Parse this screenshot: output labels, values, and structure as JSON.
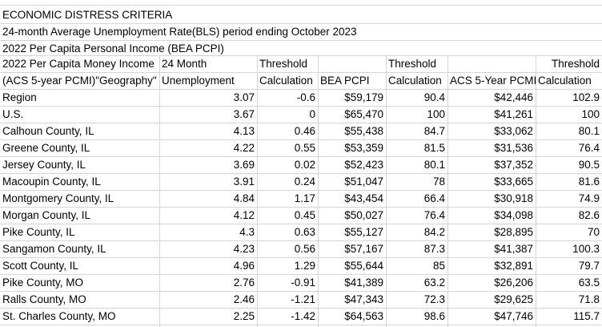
{
  "title_lines": [
    "ECONOMIC DISTRESS CRITERIA",
    "24-month Average Unemployment Rate(BLS) period ending October 2023",
    "2022 Per Capita Personal Income (BEA PCPI)"
  ],
  "header": {
    "row1": [
      "2022 Per Capita Money Income",
      "24 Month",
      "Threshold",
      "",
      "Threshold",
      "",
      "Threshold"
    ],
    "row2": [
      "(ACS 5-year PCMI)\"Geography\"",
      "Unemployment",
      "Calculation",
      "BEA PCPI",
      "Calculation",
      "ACS 5-Year PCMI",
      "Calculation"
    ]
  },
  "rows": [
    [
      "Region",
      "3.07",
      "-0.6",
      "$59,179",
      "90.4",
      "$42,446",
      "102.9"
    ],
    [
      "U.S.",
      "3.67",
      "0",
      "$65,470",
      "100",
      "$41,261",
      "100"
    ],
    [
      "Calhoun County, IL",
      "4.13",
      "0.46",
      "$55,438",
      "84.7",
      "$33,062",
      "80.1"
    ],
    [
      "Greene County, IL",
      "4.22",
      "0.55",
      "$53,359",
      "81.5",
      "$31,536",
      "76.4"
    ],
    [
      "Jersey County, IL",
      "3.69",
      "0.02",
      "$52,423",
      "80.1",
      "$37,352",
      "90.5"
    ],
    [
      "Macoupin County, IL",
      "3.91",
      "0.24",
      "$51,047",
      "78",
      "$33,665",
      "81.6"
    ],
    [
      "Montgomery County, IL",
      "4.84",
      "1.17",
      "$43,454",
      "66.4",
      "$30,918",
      "74.9"
    ],
    [
      "Morgan County, IL",
      "4.12",
      "0.45",
      "$50,027",
      "76.4",
      "$34,098",
      "82.6"
    ],
    [
      "Pike County, IL",
      "4.3",
      "0.63",
      "$55,127",
      "84.2",
      "$28,895",
      "70"
    ],
    [
      "Sangamon County, IL",
      "4.23",
      "0.56",
      "$57,167",
      "87.3",
      "$41,387",
      "100.3"
    ],
    [
      "Scott County, IL",
      "4.96",
      "1.29",
      "$55,644",
      "85",
      "$32,891",
      "79.7"
    ],
    [
      "Pike County, MO",
      "2.76",
      "-0.91",
      "$41,389",
      "63.2",
      "$26,206",
      "63.5"
    ],
    [
      "Ralls County, MO",
      "2.46",
      "-1.21",
      "$47,343",
      "72.3",
      "$29,625",
      "71.8"
    ],
    [
      "St. Charles County, MO",
      "2.25",
      "-1.42",
      "$64,563",
      "98.6",
      "$47,746",
      "115.7"
    ]
  ],
  "colors": {
    "gridline": "#d4d4d4",
    "text": "#000000",
    "background": "#ffffff"
  }
}
